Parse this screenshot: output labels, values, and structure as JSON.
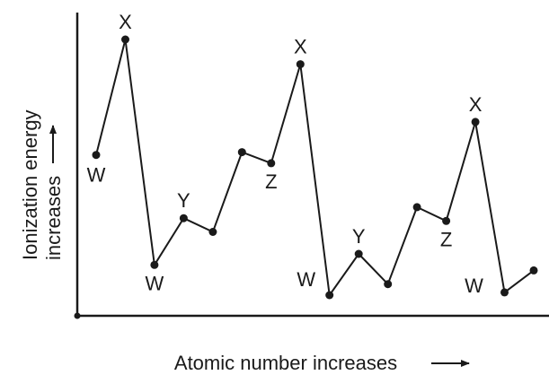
{
  "chart_data": {
    "type": "line",
    "xlabel": "Atomic number increases",
    "ylabel_line1": "Ionization energy",
    "ylabel_line2": "increases",
    "grid": false,
    "legend": "none",
    "series": [
      {
        "values": [
          {
            "x": 1,
            "y": 0.58,
            "label": "W"
          },
          {
            "x": 2,
            "y": 1.0,
            "label": "X"
          },
          {
            "x": 3,
            "y": 0.18,
            "label": "W"
          },
          {
            "x": 4,
            "y": 0.35,
            "label": "Y"
          },
          {
            "x": 5,
            "y": 0.3,
            "label": ""
          },
          {
            "x": 6,
            "y": 0.59,
            "label": ""
          },
          {
            "x": 7,
            "y": 0.55,
            "label": "Z"
          },
          {
            "x": 8,
            "y": 0.91,
            "label": "X"
          },
          {
            "x": 9,
            "y": 0.07,
            "label": "W"
          },
          {
            "x": 10,
            "y": 0.22,
            "label": "Y"
          },
          {
            "x": 11,
            "y": 0.11,
            "label": ""
          },
          {
            "x": 12,
            "y": 0.39,
            "label": ""
          },
          {
            "x": 13,
            "y": 0.34,
            "label": "Z"
          },
          {
            "x": 14,
            "y": 0.7,
            "label": "X"
          },
          {
            "x": 15,
            "y": 0.08,
            "label": "W"
          },
          {
            "x": 16,
            "y": 0.16,
            "label": ""
          }
        ]
      }
    ],
    "colors": {
      "line": "#1a1a1a",
      "axis": "#1a1a1a",
      "text": "#1a1a1a"
    }
  }
}
